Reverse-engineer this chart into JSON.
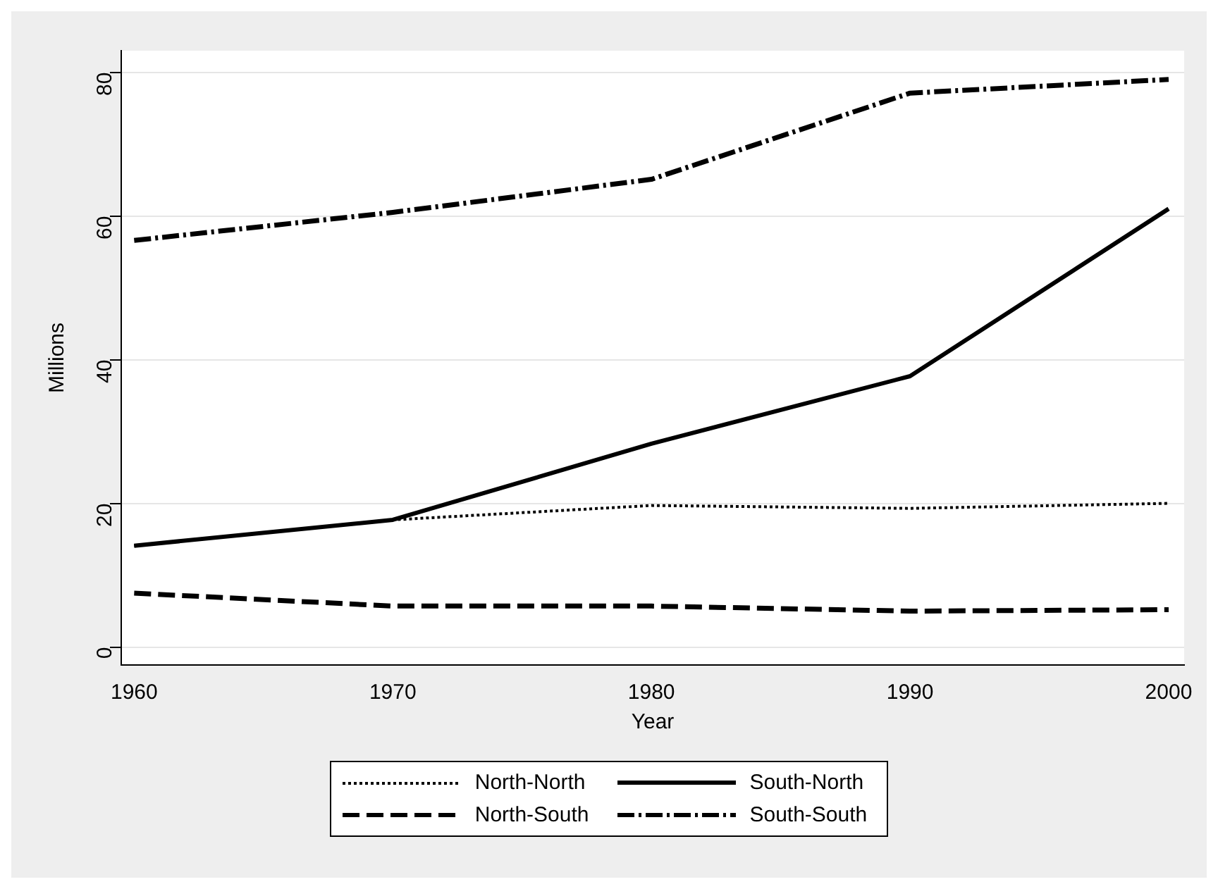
{
  "chart_data": {
    "type": "line",
    "xlabel": "Year",
    "ylabel": "Millions",
    "x": [
      1960,
      1970,
      1980,
      1990,
      2000
    ],
    "series": [
      {
        "name": "North-North",
        "color": "#000000",
        "line_style": "dotted",
        "values": [
          14.1,
          17.7,
          19.7,
          19.3,
          20
        ]
      },
      {
        "name": "South-North",
        "color": "#000000",
        "line_style": "solid",
        "values": [
          14.1,
          17.7,
          28.3,
          37.7,
          61
        ]
      },
      {
        "name": "North-South",
        "color": "#000000",
        "line_style": "dashed",
        "values": [
          7.5,
          5.7,
          5.7,
          5.0,
          5.2
        ]
      },
      {
        "name": "South-South",
        "color": "#000000",
        "line_style": "dashdot",
        "values": [
          56.6,
          60.5,
          65.1,
          77.1,
          79
        ]
      }
    ],
    "xlim": [
      1959.5,
      2000.6
    ],
    "xticks": [
      1960,
      1970,
      1980,
      1990,
      2000
    ],
    "ylim": [
      -2.5,
      83
    ],
    "yticks": [
      0,
      20,
      40,
      60,
      80
    ],
    "grid": "y",
    "legend": "bottom",
    "marker": "none"
  }
}
